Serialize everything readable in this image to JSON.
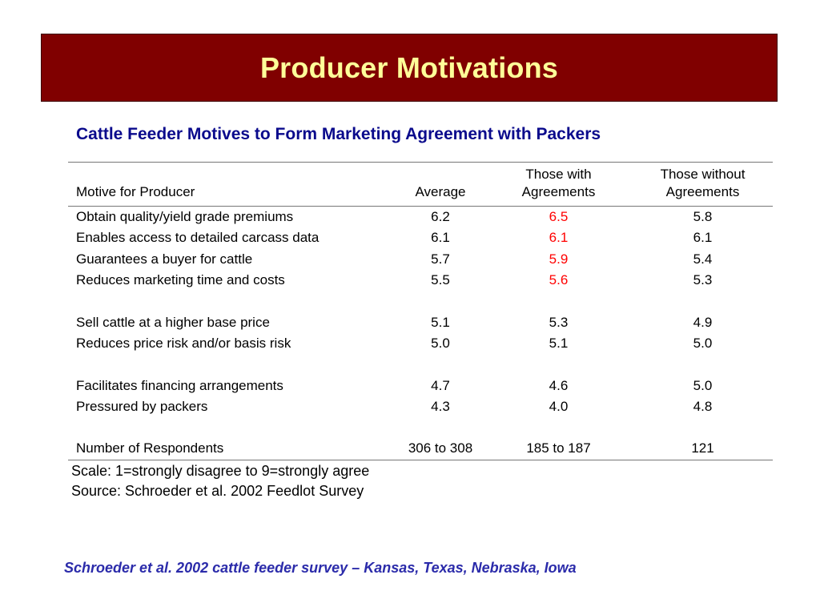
{
  "slide": {
    "title": "Producer Motivations",
    "subtitle": "Cattle Feeder Motives to Form Marketing Agreement with Packers",
    "colors": {
      "title_bar": "#800000",
      "title_text": "#ffff99",
      "subtitle_text": "#0a0a8c",
      "highlight": "#ff0000",
      "footer_text": "#2b2baa"
    }
  },
  "table": {
    "headers": {
      "motive": "Motive for Producer",
      "average": "Average",
      "with_line1": "Those with",
      "with_line2": "Agreements",
      "without_line1": "Those without",
      "without_line2": "Agreements"
    },
    "rows": [
      {
        "motive": "Obtain quality/yield grade premiums",
        "average": "6.2",
        "with": "6.5",
        "without": "5.8",
        "with_highlight": true
      },
      {
        "motive": "Enables access to detailed carcass data",
        "average": "6.1",
        "with": "6.1",
        "without": "6.1",
        "with_highlight": true
      },
      {
        "motive": "Guarantees a buyer for cattle",
        "average": "5.7",
        "with": "5.9",
        "without": "5.4",
        "with_highlight": true
      },
      {
        "motive": "Reduces marketing time and costs",
        "average": "5.5",
        "with": "5.6",
        "without": "5.3",
        "with_highlight": true
      },
      {
        "motive": "Sell cattle at a higher base price",
        "average": "5.1",
        "with": "5.3",
        "without": "4.9",
        "with_highlight": false
      },
      {
        "motive": "Reduces price risk and/or basis risk",
        "average": "5.0",
        "with": "5.1",
        "without": "5.0",
        "with_highlight": false
      },
      {
        "motive": "Facilitates financing arrangements",
        "average": "4.7",
        "with": "4.6",
        "without": "5.0",
        "with_highlight": false
      },
      {
        "motive": "Pressured by packers",
        "average": "4.3",
        "with": "4.0",
        "without": "4.8",
        "with_highlight": false
      },
      {
        "motive": "Number of Respondents",
        "average": "306 to 308",
        "with": "185 to 187",
        "without": "121",
        "with_highlight": false
      }
    ]
  },
  "notes": {
    "scale": "Scale: 1=strongly disagree to 9=strongly agree",
    "source": "Source:  Schroeder et al.  2002 Feedlot Survey"
  },
  "footer": "Schroeder et al. 2002 cattle feeder survey – Kansas, Texas, Nebraska, Iowa"
}
